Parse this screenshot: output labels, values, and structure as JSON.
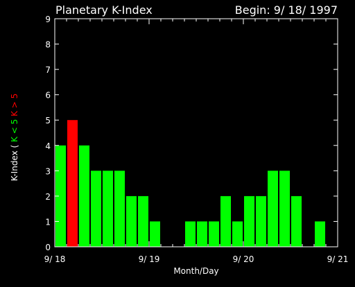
{
  "chart_data": {
    "type": "bar",
    "title": "Planetary K-Index",
    "subtitle": "Begin: 9/ 18/ 1997",
    "xlabel": "Month/Day",
    "ylabel": "K-Index",
    "legend": {
      "prefix": "(",
      "low_label": "K < 5",
      "high_label": "K > 5",
      "suffix": ""
    },
    "ylim": [
      0,
      9
    ],
    "xlim": [
      0,
      3
    ],
    "y_ticks": [
      "0",
      "1",
      "2",
      "3",
      "4",
      "5",
      "6",
      "7",
      "8",
      "9"
    ],
    "x_ticks": [
      {
        "label": "9/ 18",
        "value": 0
      },
      {
        "label": "9/ 19",
        "value": 1
      },
      {
        "label": "9/ 20",
        "value": 2
      },
      {
        "label": "9/ 21",
        "value": 3
      }
    ],
    "bin_width_days": 0.125,
    "values": [
      4,
      5,
      4,
      3,
      3,
      3,
      2,
      2,
      1,
      0,
      0,
      1,
      1,
      1,
      2,
      1,
      2,
      2,
      3,
      3,
      2,
      0,
      1,
      0
    ],
    "threshold": 5,
    "colors": {
      "low": "#00ff00",
      "high": "#ff0000",
      "axes": "#ffffff",
      "background": "#000000"
    }
  }
}
